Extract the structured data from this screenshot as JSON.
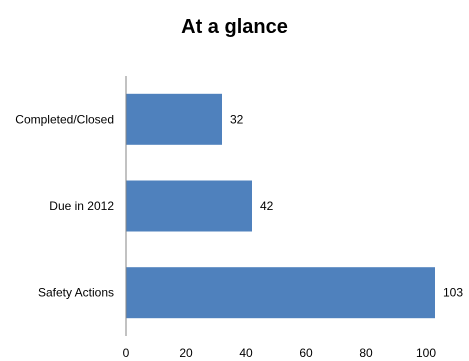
{
  "chart_data": {
    "type": "bar",
    "orientation": "horizontal",
    "title": "At a glance",
    "categories": [
      "Completed/Closed",
      "Due in 2012",
      "Safety Actions"
    ],
    "values": [
      32,
      42,
      103
    ],
    "data_labels": [
      "32",
      "42",
      "103"
    ],
    "xlabel": "",
    "ylabel": "",
    "xlim": [
      0,
      110
    ],
    "xticks": [
      0,
      20,
      40,
      60,
      80,
      100
    ],
    "xtick_labels": [
      "0",
      "20",
      "40",
      "60",
      "80",
      "100"
    ],
    "grid": false,
    "legend": "none",
    "bar_color": "#4F81BD",
    "axis_color": "#868686"
  }
}
